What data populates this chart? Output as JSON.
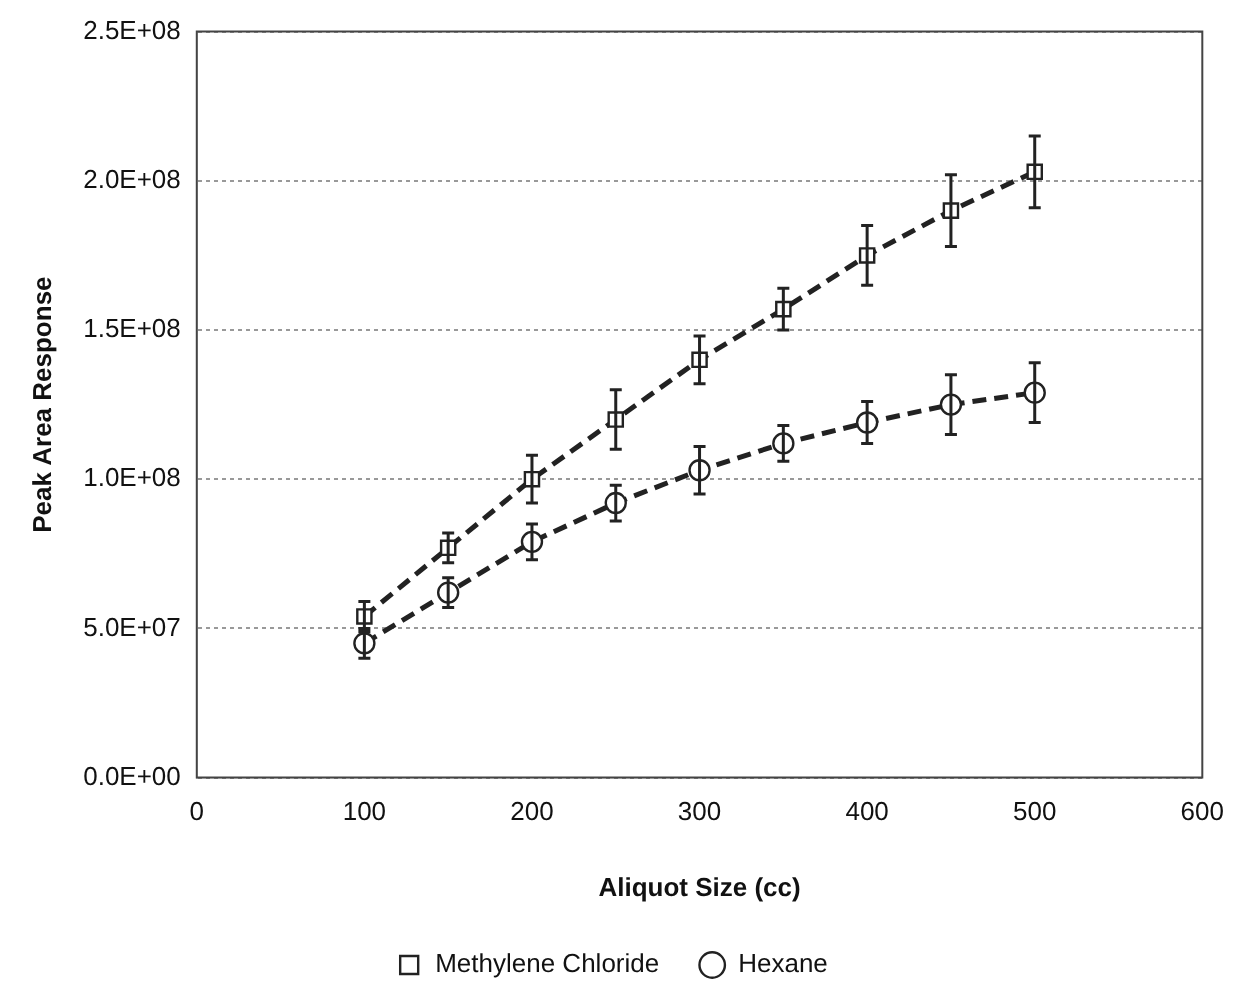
{
  "chart_data": {
    "type": "line",
    "xlabel": "Aliquot Size (cc)",
    "ylabel": "Peak Area Response",
    "xlim": [
      0,
      600
    ],
    "xticks": [
      0,
      100,
      200,
      300,
      400,
      500,
      600
    ],
    "ylim": [
      0,
      250000000
    ],
    "yticks": [
      {
        "value": 0,
        "label": "0.0E+00"
      },
      {
        "value": 50000000,
        "label": "5.0E+07"
      },
      {
        "value": 100000000,
        "label": "1.0E+08"
      },
      {
        "value": 150000000,
        "label": "1.5E+08"
      },
      {
        "value": 200000000,
        "label": "2.0E+08"
      },
      {
        "value": 250000000,
        "label": "2.5E+08"
      }
    ],
    "x": [
      100,
      150,
      200,
      250,
      300,
      350,
      400,
      450,
      500
    ],
    "series": [
      {
        "name": "Methylene Chloride",
        "color": "#222222",
        "marker": "square",
        "line_style": "dashed",
        "values": [
          54000000,
          77000000,
          100000000,
          120000000,
          140000000,
          157000000,
          175000000,
          190000000,
          203000000
        ],
        "errors": [
          5000000,
          5000000,
          8000000,
          10000000,
          8000000,
          7000000,
          10000000,
          12000000,
          12000000
        ]
      },
      {
        "name": "Hexane",
        "color": "#222222",
        "marker": "circle",
        "line_style": "dashed",
        "values": [
          45000000,
          62000000,
          79000000,
          92000000,
          103000000,
          112000000,
          119000000,
          125000000,
          129000000
        ],
        "errors": [
          5000000,
          5000000,
          6000000,
          6000000,
          8000000,
          6000000,
          7000000,
          10000000,
          10000000
        ]
      }
    ],
    "grid": "y",
    "legend": "bottom"
  }
}
